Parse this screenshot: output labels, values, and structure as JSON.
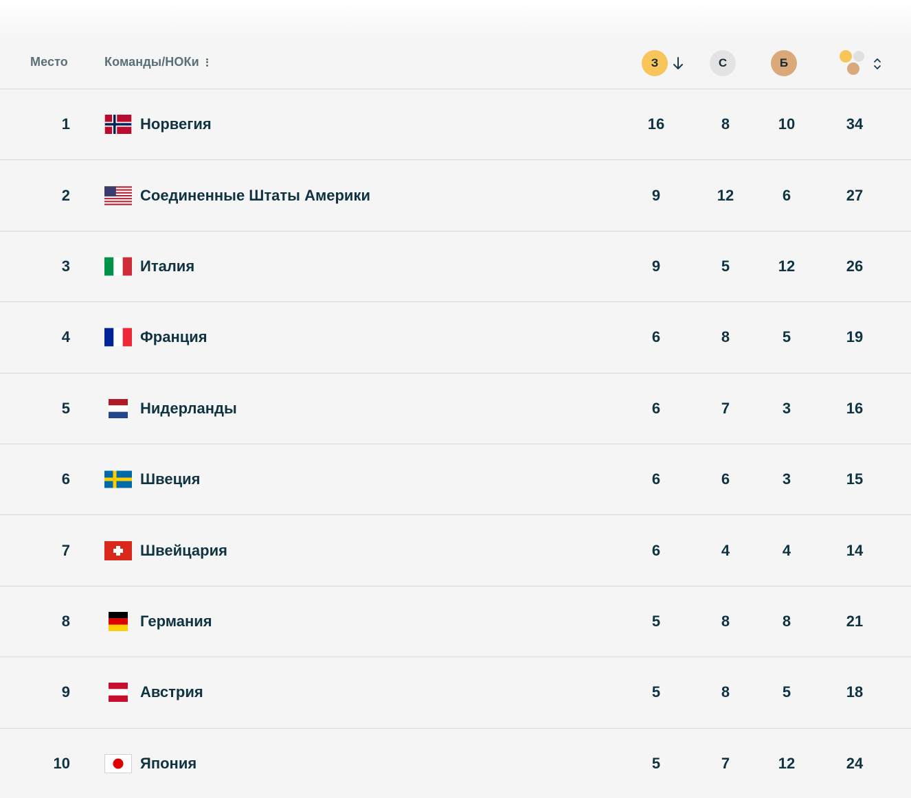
{
  "header": {
    "place_label": "Место",
    "team_label": "Команды/НОКи",
    "gold_label": "З",
    "silver_label": "С",
    "bronze_label": "Б"
  },
  "colors": {
    "gold": "#f7c55a",
    "silver": "#e3e3e3",
    "bronze": "#d9a97a",
    "text": "#0f3340",
    "header_text": "#5b6f78"
  },
  "rows": [
    {
      "rank": "1",
      "country": "Норвегия",
      "flag": "norway-flag-icon",
      "gold": "16",
      "silver": "8",
      "bronze": "10",
      "total": "34"
    },
    {
      "rank": "2",
      "country": "Соединенные Штаты Америки",
      "flag": "usa-flag-icon",
      "gold": "9",
      "silver": "12",
      "bronze": "6",
      "total": "27"
    },
    {
      "rank": "3",
      "country": "Италия",
      "flag": "italy-flag-icon",
      "gold": "9",
      "silver": "5",
      "bronze": "12",
      "total": "26"
    },
    {
      "rank": "4",
      "country": "Франция",
      "flag": "france-flag-icon",
      "gold": "6",
      "silver": "8",
      "bronze": "5",
      "total": "19"
    },
    {
      "rank": "5",
      "country": "Нидерланды",
      "flag": "netherlands-flag-icon",
      "gold": "6",
      "silver": "7",
      "bronze": "3",
      "total": "16"
    },
    {
      "rank": "6",
      "country": "Швеция",
      "flag": "sweden-flag-icon",
      "gold": "6",
      "silver": "6",
      "bronze": "3",
      "total": "15"
    },
    {
      "rank": "7",
      "country": "Швейцария",
      "flag": "switzerland-flag-icon",
      "gold": "6",
      "silver": "4",
      "bronze": "4",
      "total": "14"
    },
    {
      "rank": "8",
      "country": "Германия",
      "flag": "germany-flag-icon",
      "gold": "5",
      "silver": "8",
      "bronze": "8",
      "total": "21"
    },
    {
      "rank": "9",
      "country": "Австрия",
      "flag": "austria-flag-icon",
      "gold": "5",
      "silver": "8",
      "bronze": "5",
      "total": "18"
    },
    {
      "rank": "10",
      "country": "Япония",
      "flag": "japan-flag-icon",
      "gold": "5",
      "silver": "7",
      "bronze": "12",
      "total": "24"
    }
  ]
}
